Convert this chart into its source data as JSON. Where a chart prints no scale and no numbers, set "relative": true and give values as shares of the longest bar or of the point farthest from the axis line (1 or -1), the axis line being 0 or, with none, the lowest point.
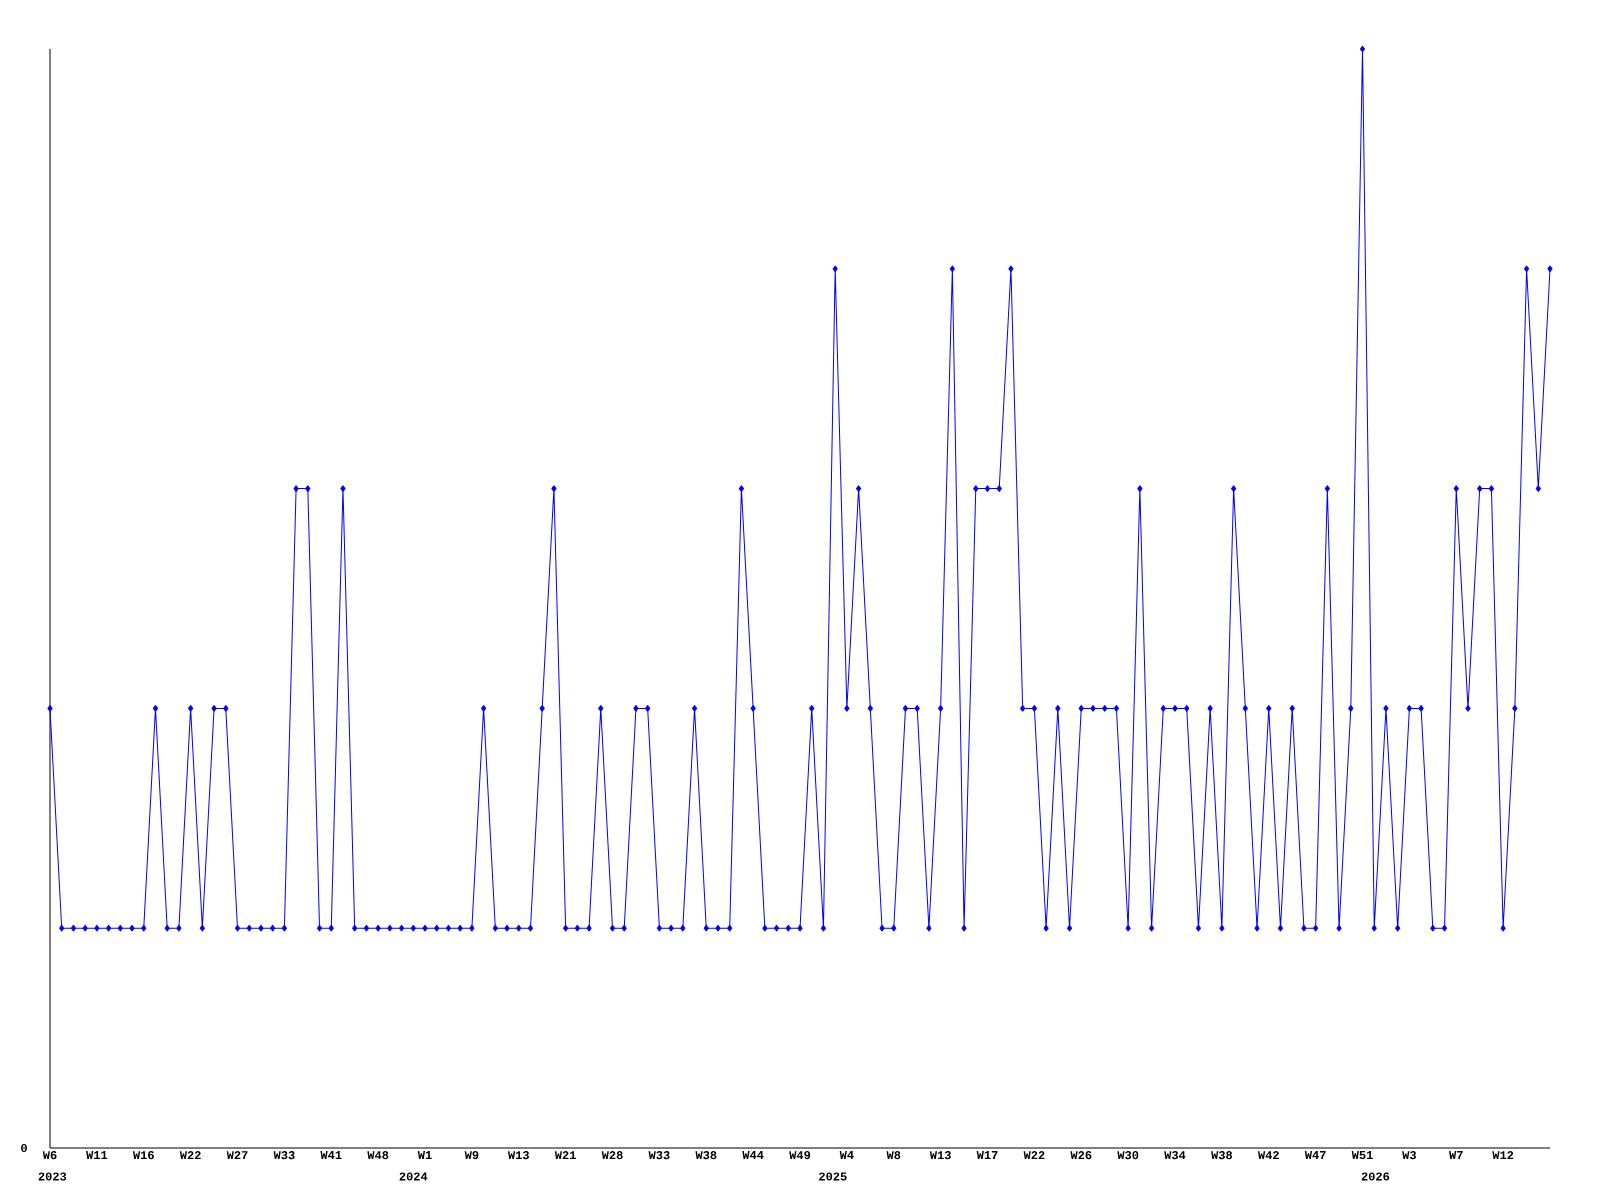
{
  "chart_data": {
    "type": "line",
    "relative": true,
    "color": "#0000ff",
    "marker": "diamond",
    "line_style": "solid",
    "grid": false,
    "categories": [
      "W6",
      null,
      null,
      null,
      "W11",
      null,
      null,
      null,
      "W16",
      null,
      null,
      null,
      "W22",
      null,
      null,
      null,
      "W27",
      null,
      null,
      null,
      "W33",
      null,
      null,
      null,
      "W41",
      null,
      null,
      null,
      "W48",
      null,
      null,
      null,
      "W1",
      null,
      null,
      null,
      "W9",
      null,
      null,
      null,
      "W13",
      null,
      null,
      null,
      "W21",
      null,
      null,
      null,
      "W28",
      null,
      null,
      null,
      "W33",
      null,
      null,
      null,
      "W38",
      null,
      null,
      null,
      "W44",
      null,
      null,
      null,
      "W49",
      null,
      null,
      null,
      "W4",
      null,
      null,
      null,
      "W8",
      null,
      null,
      null,
      "W13",
      null,
      null,
      null,
      "W17",
      null,
      null,
      null,
      "W22",
      null,
      null,
      null,
      "W26",
      null,
      null,
      null,
      "W30",
      null,
      null,
      null,
      "W34",
      null,
      null,
      null,
      "W38",
      null,
      null,
      null,
      "W42",
      null,
      null,
      null,
      "W47",
      null,
      null,
      null,
      "W51",
      null,
      null,
      null,
      "W3",
      null,
      null,
      null,
      "W7",
      null,
      null,
      null,
      "W12",
      null,
      null,
      null,
      null
    ],
    "values": [
      0.4,
      0.2,
      0.2,
      0.2,
      0.2,
      0.2,
      0.2,
      0.2,
      0.2,
      0.4,
      0.2,
      0.2,
      0.4,
      0.2,
      0.4,
      0.4,
      0.2,
      0.2,
      0.2,
      0.2,
      0.2,
      0.6,
      0.6,
      0.2,
      0.2,
      0.6,
      0.2,
      0.2,
      0.2,
      0.2,
      0.2,
      0.2,
      0.2,
      0.2,
      0.2,
      0.2,
      0.2,
      0.4,
      0.2,
      0.2,
      0.2,
      0.2,
      0.4,
      0.6,
      0.2,
      0.2,
      0.2,
      0.4,
      0.2,
      0.2,
      0.4,
      0.4,
      0.2,
      0.2,
      0.2,
      0.4,
      0.2,
      0.2,
      0.2,
      0.6,
      0.4,
      0.2,
      0.2,
      0.2,
      0.2,
      0.4,
      0.2,
      0.8,
      0.4,
      0.6,
      0.4,
      0.2,
      0.2,
      0.4,
      0.4,
      0.2,
      0.4,
      0.8,
      0.2,
      0.6,
      0.6,
      0.6,
      0.8,
      0.4,
      0.4,
      0.2,
      0.4,
      0.2,
      0.4,
      0.4,
      0.4,
      0.4,
      0.2,
      0.6,
      0.2,
      0.4,
      0.4,
      0.4,
      0.2,
      0.4,
      0.2,
      0.6,
      0.4,
      0.2,
      0.4,
      0.2,
      0.4,
      0.2,
      0.2,
      0.6,
      0.2,
      0.4,
      1.0,
      0.2,
      0.4,
      0.2,
      0.4,
      0.4,
      0.2,
      0.2,
      0.6,
      0.4,
      0.6,
      0.6,
      0.2,
      0.4,
      0.8,
      0.6,
      0.8
    ],
    "annotations": [
      "0",
      "2023",
      "2024",
      "2025",
      "2026"
    ]
  }
}
